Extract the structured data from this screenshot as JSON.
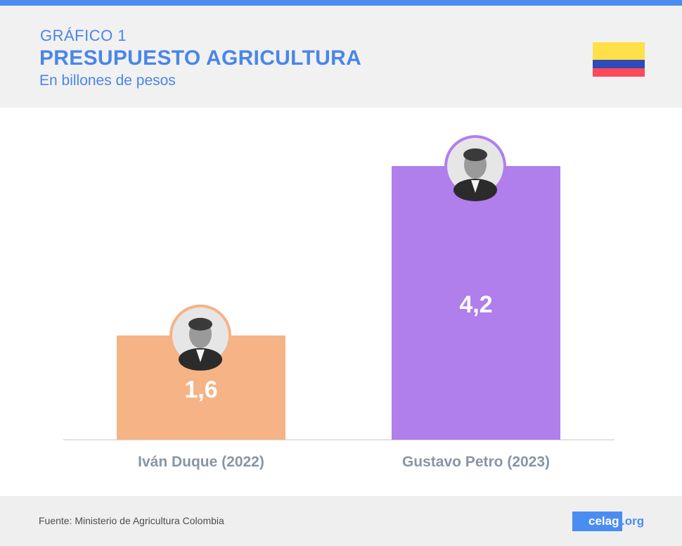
{
  "header": {
    "label": "GRÁFICO 1",
    "title": "PRESUPUESTO AGRICULTURA",
    "subtitle": "En billones de pesos",
    "flag_colors": [
      "#ffe047",
      "#2e4bb7",
      "#ff4a5a"
    ]
  },
  "chart_data": {
    "type": "bar",
    "title": "PRESUPUESTO AGRICULTURA",
    "subtitle": "En billones de pesos",
    "categories": [
      "Iván Duque (2022)",
      "Gustavo Petro (2023)"
    ],
    "values": [
      1.6,
      4.2
    ],
    "value_labels": [
      "1,6",
      "4,2"
    ],
    "colors": [
      "#f5b386",
      "#b07fec"
    ],
    "ylim": [
      0,
      4.2
    ],
    "grid": false,
    "legend": "none"
  },
  "footer": {
    "source": "Fuente: Ministerio de Agricultura Colombia",
    "logo_main": "celag",
    "logo_suffix": ".org",
    "accent": "#4a8df2"
  }
}
